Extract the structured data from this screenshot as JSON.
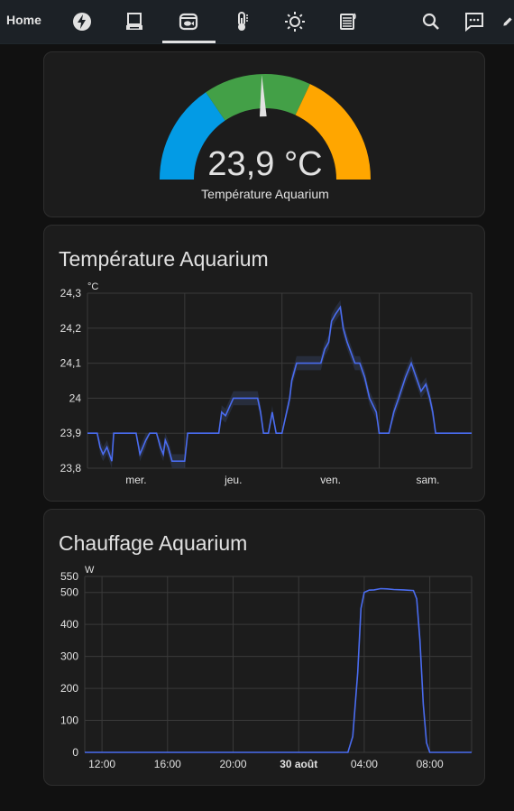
{
  "header": {
    "home_label": "Home",
    "icons": [
      "lightning-icon",
      "laptop-icon",
      "fish-tank-icon",
      "thermometer-icon",
      "sun-icon",
      "radiator-icon",
      "search-icon",
      "chat-icon",
      "pencil-icon"
    ]
  },
  "gauge": {
    "value_text": "23,9 °C",
    "name": "Température Aquarium",
    "segments": [
      {
        "color": "#039be5"
      },
      {
        "color": "#43a047"
      },
      {
        "color": "#ffa600"
      }
    ],
    "needle_fraction": 0.49
  },
  "temp_chart": {
    "title": "Température Aquarium",
    "chart_data": {
      "type": "line",
      "unit": "°C",
      "ylim": [
        23.8,
        24.3
      ],
      "yticks": [
        "23,8",
        "23,9",
        "24",
        "24,1",
        "24,2",
        "24,3"
      ],
      "xticks": [
        {
          "label": "mer.",
          "x": 0.5
        },
        {
          "label": "jeu.",
          "x": 1.5
        },
        {
          "label": "ven.",
          "x": 2.5
        },
        {
          "label": "sam.",
          "x": 3.5
        }
      ],
      "xlim": [
        0,
        3.95
      ],
      "series_color": "#4a6cf0",
      "points": [
        [
          0,
          23.9
        ],
        [
          0.1,
          23.9
        ],
        [
          0.13,
          23.86
        ],
        [
          0.16,
          23.84
        ],
        [
          0.2,
          23.86
        ],
        [
          0.25,
          23.82
        ],
        [
          0.27,
          23.9
        ],
        [
          0.5,
          23.9
        ],
        [
          0.54,
          23.84
        ],
        [
          0.57,
          23.86
        ],
        [
          0.6,
          23.88
        ],
        [
          0.64,
          23.9
        ],
        [
          0.71,
          23.9
        ],
        [
          0.75,
          23.86
        ],
        [
          0.78,
          23.84
        ],
        [
          0.8,
          23.88
        ],
        [
          0.83,
          23.86
        ],
        [
          0.87,
          23.82
        ],
        [
          1,
          23.82
        ],
        [
          1.03,
          23.9
        ],
        [
          1.35,
          23.9
        ],
        [
          1.38,
          23.96
        ],
        [
          1.42,
          23.95
        ],
        [
          1.5,
          24.0
        ],
        [
          1.75,
          24.0
        ],
        [
          1.78,
          23.96
        ],
        [
          1.81,
          23.9
        ],
        [
          1.86,
          23.9
        ],
        [
          1.9,
          23.96
        ],
        [
          1.94,
          23.9
        ],
        [
          2.0,
          23.9
        ],
        [
          2.08,
          24.0
        ],
        [
          2.1,
          24.05
        ],
        [
          2.15,
          24.1
        ],
        [
          2.4,
          24.1
        ],
        [
          2.44,
          24.14
        ],
        [
          2.48,
          24.16
        ],
        [
          2.51,
          24.22
        ],
        [
          2.55,
          24.24
        ],
        [
          2.6,
          24.26
        ],
        [
          2.63,
          24.2
        ],
        [
          2.67,
          24.16
        ],
        [
          2.75,
          24.1
        ],
        [
          2.8,
          24.1
        ],
        [
          2.85,
          24.06
        ],
        [
          2.9,
          24.0
        ],
        [
          2.97,
          23.96
        ],
        [
          3.0,
          23.9
        ],
        [
          3.1,
          23.9
        ],
        [
          3.15,
          23.96
        ],
        [
          3.2,
          24.0
        ],
        [
          3.27,
          24.06
        ],
        [
          3.33,
          24.1
        ],
        [
          3.38,
          24.06
        ],
        [
          3.43,
          24.02
        ],
        [
          3.48,
          24.04
        ],
        [
          3.52,
          24.0
        ],
        [
          3.55,
          23.96
        ],
        [
          3.58,
          23.9
        ],
        [
          3.95,
          23.9
        ]
      ]
    }
  },
  "heat_chart": {
    "title": "Chauffage Aquarium",
    "chart_data": {
      "type": "line",
      "unit": "W",
      "ylim": [
        0,
        550
      ],
      "yticks": [
        {
          "label": "0",
          "v": 0
        },
        {
          "label": "100",
          "v": 100
        },
        {
          "label": "200",
          "v": 200
        },
        {
          "label": "300",
          "v": 300
        },
        {
          "label": "400",
          "v": 400
        },
        {
          "label": "500",
          "v": 500
        },
        {
          "label": "550",
          "v": 550
        }
      ],
      "xlim": [
        10.95,
        34.55
      ],
      "xticks": [
        {
          "label": "12:00",
          "x": 12,
          "bold": false
        },
        {
          "label": "16:00",
          "x": 16,
          "bold": false
        },
        {
          "label": "20:00",
          "x": 20,
          "bold": false
        },
        {
          "label": "30 août",
          "x": 24,
          "bold": true
        },
        {
          "label": "04:00",
          "x": 28,
          "bold": false
        },
        {
          "label": "08:00",
          "x": 32,
          "bold": false
        }
      ],
      "series_color": "#4a6cf0",
      "points": [
        [
          10.95,
          0
        ],
        [
          27.0,
          0
        ],
        [
          27.3,
          50
        ],
        [
          27.6,
          250
        ],
        [
          27.8,
          450
        ],
        [
          28.0,
          500
        ],
        [
          28.3,
          507
        ],
        [
          28.6,
          508
        ],
        [
          29.0,
          512
        ],
        [
          29.4,
          511
        ],
        [
          29.8,
          509
        ],
        [
          30.4,
          508
        ],
        [
          31.0,
          506
        ],
        [
          31.2,
          480
        ],
        [
          31.4,
          350
        ],
        [
          31.6,
          150
        ],
        [
          31.8,
          30
        ],
        [
          32.0,
          0
        ],
        [
          34.55,
          0
        ]
      ]
    }
  }
}
